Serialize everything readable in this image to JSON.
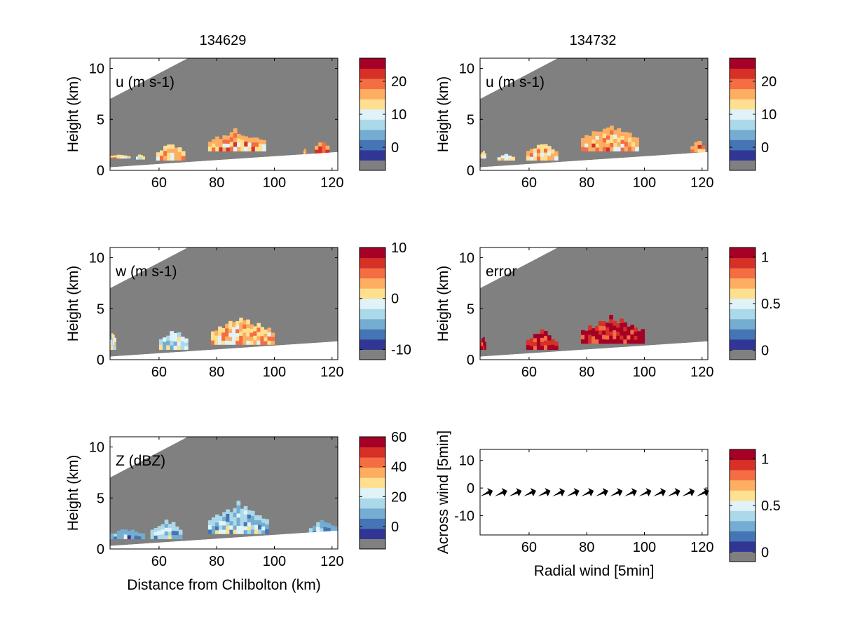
{
  "figure": {
    "col_titles": [
      "134629",
      "134732"
    ]
  },
  "colors": {
    "no_data": "#808080",
    "colormap": [
      "#313695",
      "#4575b4",
      "#74add1",
      "#abd9e9",
      "#e0f3f8",
      "#fee090",
      "#fdae61",
      "#f46d43",
      "#d73027",
      "#a50026"
    ]
  },
  "chart_data": [
    {
      "id": "u-134629",
      "type": "heatmap",
      "title": "134629",
      "panel_label": "u (m s-1)",
      "xlabel": "",
      "ylabel": "Height (km)",
      "xlim": [
        43,
        122
      ],
      "ylim": [
        0,
        11
      ],
      "xticks": [
        60,
        80,
        100,
        120
      ],
      "yticks": [
        0,
        5,
        10
      ],
      "colorbar": {
        "ticks": [
          0,
          10,
          20
        ],
        "range": [
          -7,
          27
        ]
      },
      "echo_blobs": [
        {
          "x": [
            43,
            50
          ],
          "top": [
            1.2,
            1.6
          ],
          "value": 13
        },
        {
          "x": [
            52,
            55
          ],
          "top": [
            1.1,
            1.6
          ],
          "value": 12
        },
        {
          "x": [
            59,
            69
          ],
          "top": [
            1.0,
            2.8
          ],
          "value": 14
        },
        {
          "x": [
            77,
            97
          ],
          "top": [
            1.9,
            4.0
          ],
          "value": 16
        },
        {
          "x": [
            110,
            111
          ],
          "top": [
            1.6,
            2.2
          ],
          "value": 15
        },
        {
          "x": [
            114,
            119
          ],
          "top": [
            1.7,
            3.0
          ],
          "value": 17
        }
      ]
    },
    {
      "id": "u-134732",
      "type": "heatmap",
      "title": "134732",
      "panel_label": "u (m s-1)",
      "xlabel": "",
      "ylabel": "Height (km)",
      "xlim": [
        43,
        122
      ],
      "ylim": [
        0,
        11
      ],
      "xticks": [
        60,
        80,
        100,
        120
      ],
      "yticks": [
        0,
        5,
        10
      ],
      "colorbar": {
        "ticks": [
          0,
          10,
          20
        ],
        "range": [
          -7,
          27
        ]
      },
      "echo_blobs": [
        {
          "x": [
            43,
            45
          ],
          "top": [
            1.2,
            2.0
          ],
          "value": 13
        },
        {
          "x": [
            49,
            55
          ],
          "top": [
            1.0,
            1.6
          ],
          "value": 12
        },
        {
          "x": [
            59,
            70
          ],
          "top": [
            1.0,
            2.9
          ],
          "value": 14
        },
        {
          "x": [
            78,
            98
          ],
          "top": [
            1.9,
            4.6
          ],
          "value": 16
        },
        {
          "x": [
            116,
            121
          ],
          "top": [
            1.8,
            3.0
          ],
          "value": 17
        }
      ]
    },
    {
      "id": "w-134629",
      "type": "heatmap",
      "panel_label": "w (m s-1)",
      "xlabel": "",
      "ylabel": "Height (km)",
      "xlim": [
        43,
        122
      ],
      "ylim": [
        0,
        11
      ],
      "xticks": [
        60,
        80,
        100,
        120
      ],
      "yticks": [
        0,
        5,
        10
      ],
      "colorbar": {
        "ticks": [
          -10,
          0,
          10
        ],
        "range": [
          -12,
          10
        ]
      },
      "echo_blobs": [
        {
          "x": [
            43,
            45
          ],
          "top": [
            1.0,
            2.8
          ],
          "value": 0
        },
        {
          "x": [
            60,
            70
          ],
          "top": [
            1.0,
            3.0
          ],
          "value": -2
        },
        {
          "x": [
            78,
            100
          ],
          "top": [
            1.5,
            4.3
          ],
          "value": 2
        }
      ]
    },
    {
      "id": "error-134732",
      "type": "heatmap",
      "panel_label": "error",
      "xlabel": "",
      "ylabel": "Height (km)",
      "xlim": [
        43,
        122
      ],
      "ylim": [
        0,
        11
      ],
      "xticks": [
        60,
        80,
        100,
        120
      ],
      "yticks": [
        0,
        5,
        10
      ],
      "colorbar": {
        "ticks": [
          0,
          0.5,
          1
        ],
        "range": [
          -0.1,
          1.1
        ]
      },
      "echo_blobs": [
        {
          "x": [
            43,
            45
          ],
          "top": [
            1.0,
            2.4
          ],
          "value": 1
        },
        {
          "x": [
            59,
            70
          ],
          "top": [
            1.0,
            2.9
          ],
          "value": 1
        },
        {
          "x": [
            78,
            100
          ],
          "top": [
            1.6,
            4.3
          ],
          "value": 1
        }
      ]
    },
    {
      "id": "z-134629",
      "type": "heatmap",
      "panel_label": "Z (dBZ)",
      "xlabel": "Distance from Chilbolton (km)",
      "ylabel": "Height (km)",
      "xlim": [
        43,
        122
      ],
      "ylim": [
        0,
        11
      ],
      "xticks": [
        60,
        80,
        100,
        120
      ],
      "yticks": [
        0,
        5,
        10
      ],
      "colorbar": {
        "ticks": [
          0,
          20,
          40,
          60
        ],
        "range": [
          -15,
          60
        ]
      },
      "echo_blobs": [
        {
          "x": [
            43,
            55
          ],
          "top": [
            1.0,
            2.0
          ],
          "value": 10
        },
        {
          "x": [
            57,
            68
          ],
          "top": [
            1.0,
            3.0
          ],
          "value": 15
        },
        {
          "x": [
            77,
            98
          ],
          "top": [
            1.5,
            4.5
          ],
          "value": 15
        },
        {
          "x": [
            102,
            110
          ],
          "top": [
            1.0,
            1.5
          ],
          "value": 10
        },
        {
          "x": [
            112,
            122
          ],
          "top": [
            1.3,
            3.0
          ],
          "value": 12
        }
      ]
    },
    {
      "id": "wind-arrows",
      "type": "scatter",
      "xlabel": "Radial wind [5min]",
      "ylabel": "Across wind [5min]",
      "xlim": [
        43,
        122
      ],
      "ylim": [
        -17,
        14
      ],
      "xticks": [
        60,
        80,
        100,
        120
      ],
      "yticks": [
        -10,
        0,
        10
      ],
      "colorbar": {
        "ticks": [
          0,
          0.5,
          1
        ],
        "range": [
          -0.1,
          1.1
        ]
      },
      "arrows": {
        "x": [
          45,
          50,
          55,
          60,
          65,
          70,
          75,
          80,
          85,
          90,
          95,
          100,
          105,
          110,
          115,
          120
        ],
        "y": [
          -2,
          -2,
          -2,
          -2,
          -2,
          -2,
          -2,
          -2,
          -2,
          -2,
          -2,
          -2,
          -2,
          -2,
          -2,
          -2
        ]
      }
    }
  ]
}
